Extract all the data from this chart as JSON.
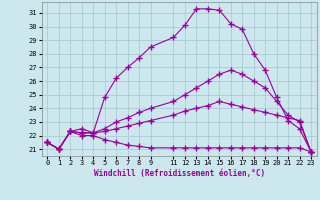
{
  "xlabel": "Windchill (Refroidissement éolien,°C)",
  "background_color": "#cce8ee",
  "grid_color": "#aaccd4",
  "line_color": "#990099",
  "xlim": [
    -0.5,
    23.5
  ],
  "ylim": [
    20.5,
    31.8
  ],
  "yticks": [
    21,
    22,
    23,
    24,
    25,
    26,
    27,
    28,
    29,
    30,
    31
  ],
  "xticks": [
    0,
    1,
    2,
    3,
    4,
    5,
    6,
    7,
    8,
    9,
    11,
    12,
    13,
    14,
    15,
    16,
    17,
    18,
    19,
    20,
    21,
    22,
    23
  ],
  "line1_x": [
    0,
    1,
    2,
    3,
    4,
    5,
    6,
    7,
    8,
    9,
    11,
    12,
    13,
    14,
    15,
    16,
    17,
    18,
    19,
    20,
    21,
    22,
    23
  ],
  "line1_y": [
    21.5,
    21.0,
    22.3,
    22.5,
    22.2,
    24.8,
    26.2,
    27.0,
    27.7,
    28.5,
    29.2,
    30.1,
    31.3,
    31.3,
    31.2,
    30.2,
    29.8,
    28.0,
    26.8,
    24.8,
    23.1,
    22.5,
    20.8
  ],
  "line2_x": [
    0,
    1,
    2,
    3,
    4,
    5,
    6,
    7,
    8,
    9,
    11,
    12,
    13,
    14,
    15,
    16,
    17,
    18,
    19,
    20,
    21,
    22,
    23
  ],
  "line2_y": [
    21.5,
    21.0,
    22.3,
    22.2,
    22.2,
    22.5,
    23.0,
    23.3,
    23.7,
    24.0,
    24.5,
    25.0,
    25.5,
    26.0,
    26.5,
    26.8,
    26.5,
    26.0,
    25.5,
    24.5,
    23.5,
    23.0,
    20.8
  ],
  "line3_x": [
    0,
    1,
    2,
    3,
    4,
    5,
    6,
    7,
    8,
    9,
    11,
    12,
    13,
    14,
    15,
    16,
    17,
    18,
    19,
    20,
    21,
    22,
    23
  ],
  "line3_y": [
    21.5,
    21.0,
    22.3,
    22.2,
    22.2,
    22.3,
    22.5,
    22.7,
    22.9,
    23.1,
    23.5,
    23.8,
    24.0,
    24.2,
    24.5,
    24.3,
    24.1,
    23.9,
    23.7,
    23.5,
    23.3,
    23.1,
    20.8
  ],
  "line4_x": [
    0,
    1,
    2,
    3,
    4,
    5,
    6,
    7,
    8,
    9,
    11,
    12,
    13,
    14,
    15,
    16,
    17,
    18,
    19,
    20,
    21,
    22,
    23
  ],
  "line4_y": [
    21.5,
    21.0,
    22.3,
    22.0,
    22.0,
    21.7,
    21.5,
    21.3,
    21.2,
    21.1,
    21.1,
    21.1,
    21.1,
    21.1,
    21.1,
    21.1,
    21.1,
    21.1,
    21.1,
    21.1,
    21.1,
    21.1,
    20.8
  ]
}
